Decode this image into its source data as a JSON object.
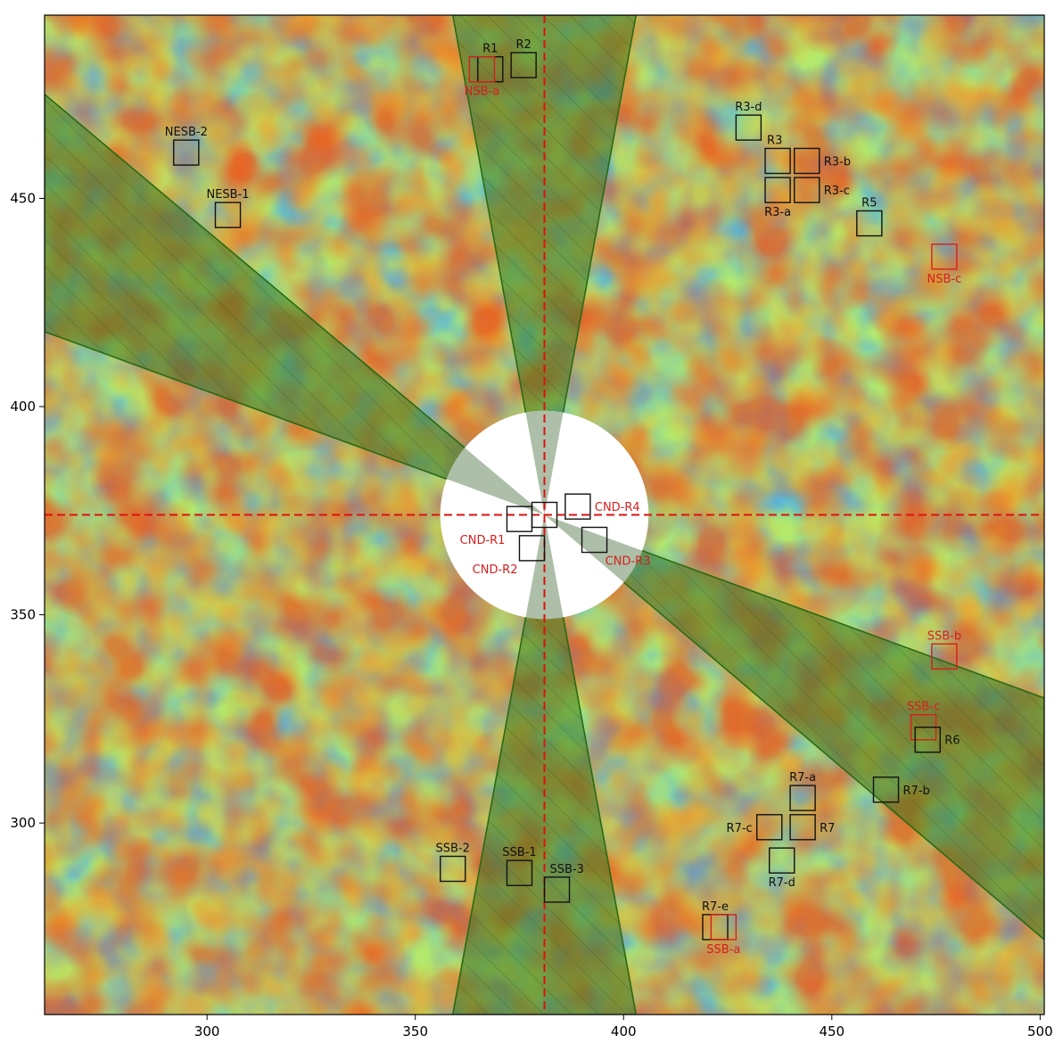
{
  "chart_data": {
    "type": "heatmap",
    "title": "",
    "xlabel": "",
    "ylabel": "",
    "xlim": [
      261,
      501
    ],
    "ylim": [
      254,
      494
    ],
    "x_ticks": [
      300,
      350,
      400,
      450,
      500
    ],
    "y_ticks": [
      300,
      350,
      400,
      450
    ],
    "grid": false,
    "colormap": "jet",
    "center": [
      381,
      374
    ],
    "central_mask_radius": 25,
    "wedges": [
      {
        "name": "north",
        "from": [
          381,
          374
        ],
        "points": [
          [
            359,
            494
          ],
          [
            403,
            494
          ]
        ]
      },
      {
        "name": "south",
        "from": [
          381,
          374
        ],
        "points": [
          [
            359,
            254
          ],
          [
            403,
            254
          ]
        ]
      },
      {
        "name": "northwest",
        "from": [
          381,
          374
        ],
        "points": [
          [
            261,
            475
          ],
          [
            261,
            418
          ]
        ]
      },
      {
        "name": "southeast",
        "from": [
          381,
          374
        ],
        "points": [
          [
            501,
            330
          ],
          [
            501,
            272
          ]
        ]
      }
    ],
    "crosshair": {
      "x": 381,
      "y": 374,
      "color": "#dd1111"
    },
    "regions": [
      {
        "label": "R1",
        "x": 368,
        "y": 481,
        "color": "black",
        "label_pos": "above"
      },
      {
        "label": "NSB-a",
        "x": 366,
        "y": 481,
        "color": "red",
        "label_pos": "below"
      },
      {
        "label": "R2",
        "x": 376,
        "y": 482,
        "color": "black",
        "label_pos": "above"
      },
      {
        "label": "NESB-2",
        "x": 295,
        "y": 461,
        "color": "black",
        "label_pos": "above"
      },
      {
        "label": "NESB-1",
        "x": 305,
        "y": 446,
        "color": "black",
        "label_pos": "above"
      },
      {
        "label": "R3-d",
        "x": 430,
        "y": 467,
        "color": "black",
        "label_pos": "above"
      },
      {
        "label": "R3",
        "x": 437,
        "y": 459,
        "color": "black",
        "label_pos": "above-left"
      },
      {
        "label": "R3-b",
        "x": 444,
        "y": 459,
        "color": "black",
        "label_pos": "right"
      },
      {
        "label": "R3-a",
        "x": 437,
        "y": 452,
        "color": "black",
        "label_pos": "below"
      },
      {
        "label": "R3-c",
        "x": 444,
        "y": 452,
        "color": "black",
        "label_pos": "right"
      },
      {
        "label": "R5",
        "x": 459,
        "y": 444,
        "color": "black",
        "label_pos": "above"
      },
      {
        "label": "NSB-c",
        "x": 477,
        "y": 436,
        "color": "red",
        "label_pos": "below"
      },
      {
        "label": "CND-R4",
        "x": 389,
        "y": 376,
        "color": "black",
        "text_color": "red",
        "label_pos": "right"
      },
      {
        "label": "",
        "x": 381,
        "y": 374,
        "color": "black",
        "label_pos": "none"
      },
      {
        "label": "CND-R1",
        "x": 375,
        "y": 373,
        "color": "black",
        "text_color": "red",
        "label_pos": "below-left"
      },
      {
        "label": "CND-R2",
        "x": 378,
        "y": 366,
        "color": "black",
        "text_color": "red",
        "label_pos": "below-left"
      },
      {
        "label": "CND-R3",
        "x": 393,
        "y": 368,
        "color": "black",
        "text_color": "red",
        "label_pos": "below-right"
      },
      {
        "label": "SSB-b",
        "x": 477,
        "y": 340,
        "color": "red",
        "label_pos": "above"
      },
      {
        "label": "SSB-c",
        "x": 472,
        "y": 323,
        "color": "red",
        "label_pos": "above"
      },
      {
        "label": "R6",
        "x": 473,
        "y": 320,
        "color": "black",
        "label_pos": "right"
      },
      {
        "label": "R7-b",
        "x": 463,
        "y": 308,
        "color": "black",
        "label_pos": "right"
      },
      {
        "label": "R7-a",
        "x": 443,
        "y": 306,
        "color": "black",
        "label_pos": "above"
      },
      {
        "label": "R7-c",
        "x": 435,
        "y": 299,
        "color": "black",
        "label_pos": "left"
      },
      {
        "label": "R7",
        "x": 443,
        "y": 299,
        "color": "black",
        "label_pos": "right"
      },
      {
        "label": "R7-d",
        "x": 438,
        "y": 291,
        "color": "black",
        "label_pos": "below"
      },
      {
        "label": "SSB-2",
        "x": 359,
        "y": 289,
        "color": "black",
        "label_pos": "above"
      },
      {
        "label": "SSB-1",
        "x": 375,
        "y": 288,
        "color": "black",
        "label_pos": "above"
      },
      {
        "label": "SSB-3",
        "x": 384,
        "y": 284,
        "color": "black",
        "label_pos": "above-right"
      },
      {
        "label": "R7-e",
        "x": 422,
        "y": 275,
        "color": "black",
        "label_pos": "above"
      },
      {
        "label": "SSB-a",
        "x": 424,
        "y": 275,
        "color": "red",
        "label_pos": "below"
      }
    ]
  }
}
